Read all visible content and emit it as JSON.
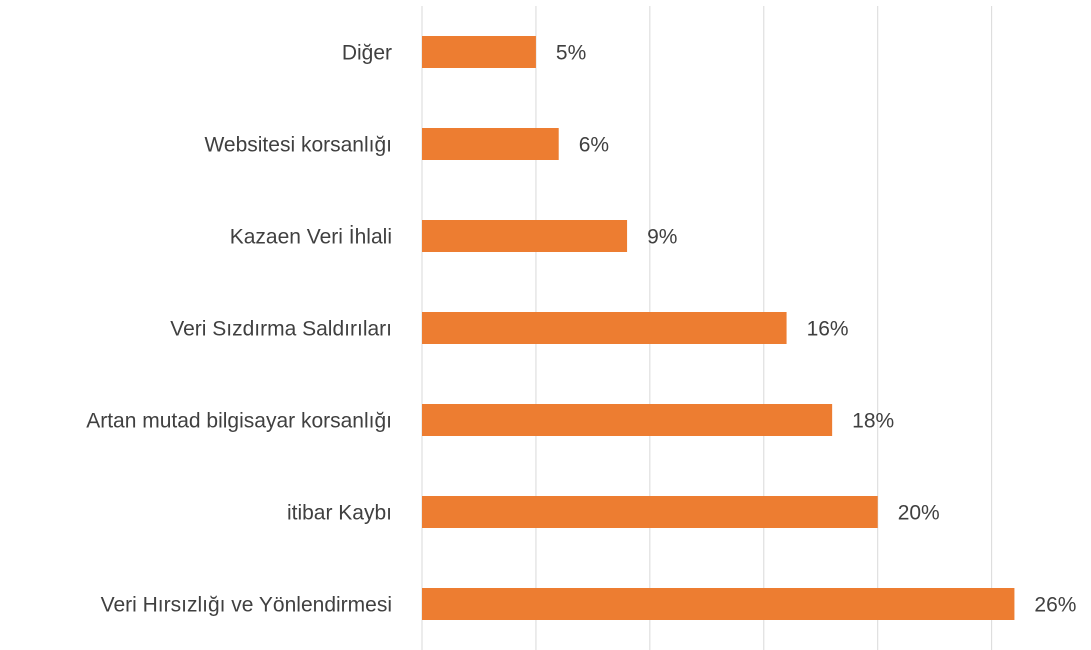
{
  "chart_data": {
    "type": "barh",
    "categories": [
      "Diğer",
      "Websitesi korsanlığı",
      "Kazaen Veri İhlali",
      "Veri Sızdırma Saldırıları",
      "Artan mutad bilgisayar korsanlığı",
      "itibar Kaybı",
      "Veri Hırsızlığı ve Yönlendirmesi"
    ],
    "values": [
      5,
      6,
      9,
      16,
      18,
      20,
      26
    ],
    "value_labels": [
      "5%",
      "6%",
      "9%",
      "16%",
      "18%",
      "20%",
      "26%"
    ],
    "color": "#ed7d31",
    "xlim": [
      0,
      28
    ],
    "xticks": [
      0,
      5,
      10,
      15,
      20,
      25
    ],
    "grid": true
  }
}
